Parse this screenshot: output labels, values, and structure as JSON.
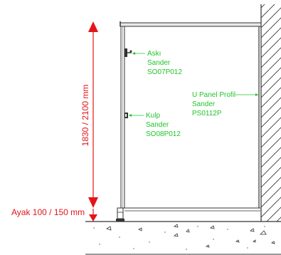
{
  "dimensions": {
    "height_label": "1830 / 2100 mm",
    "foot_label": "Ayak 100 / 150 mm"
  },
  "callouts": {
    "hanger": {
      "line1": "Askı",
      "line2": "Sander",
      "line3": "SO07P012"
    },
    "handle": {
      "line1": "Kulp",
      "line2": "Sander",
      "line3": "SO08P012"
    },
    "profile": {
      "line1": "U Panel Profil",
      "line2": "Sander",
      "line3": "PS0112P"
    }
  },
  "colors": {
    "dimension": "#e3151a",
    "callout": "#1fc42a",
    "linework": "#333333"
  }
}
